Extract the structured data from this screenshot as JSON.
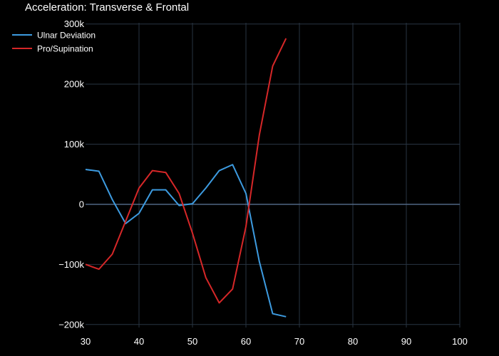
{
  "chart_data": {
    "type": "line",
    "title": "Acceleration: Transverse & Frontal",
    "xlabel": "",
    "ylabel": "",
    "xlim": [
      30,
      100
    ],
    "ylim": [
      -205000,
      302000
    ],
    "x_ticks": [
      30,
      40,
      50,
      60,
      70,
      80,
      90,
      100
    ],
    "x_tick_labels": [
      "30",
      "40",
      "50",
      "60",
      "70",
      "80",
      "90",
      "100"
    ],
    "y_ticks": [
      -200000,
      -100000,
      0,
      100000,
      200000,
      300000
    ],
    "y_tick_labels": [
      "−200k",
      "−100k",
      "0",
      "100k",
      "200k",
      "300k"
    ],
    "grid": true,
    "legend_position": "top-left",
    "series": [
      {
        "name": "Ulnar Deviation",
        "color": "#3d9be0",
        "x": [
          30,
          32.5,
          35,
          37.5,
          40,
          42.5,
          45,
          47.5,
          50,
          52.5,
          55,
          57.5,
          60,
          62.5,
          65,
          67.5
        ],
        "y": [
          58000,
          55000,
          8000,
          -32000,
          -15000,
          24000,
          24000,
          -2000,
          1000,
          27000,
          56000,
          66000,
          18000,
          -95000,
          -182000,
          -187000
        ]
      },
      {
        "name": "Pro/Supination",
        "color": "#d62728",
        "x": [
          30,
          32.5,
          35,
          37.5,
          40,
          42.5,
          45,
          47.5,
          50,
          52.5,
          55,
          57.5,
          60,
          62.5,
          65,
          67.5
        ],
        "y": [
          -100000,
          -108000,
          -83000,
          -28000,
          27000,
          56000,
          53000,
          18000,
          -48000,
          -122000,
          -164000,
          -141000,
          -37000,
          115000,
          230000,
          276000
        ]
      }
    ]
  }
}
